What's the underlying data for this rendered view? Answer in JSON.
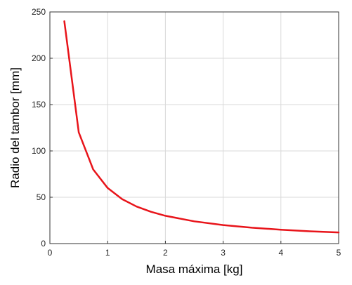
{
  "chart_data": {
    "type": "line",
    "title": "",
    "xlabel": "Masa máxima [kg]",
    "ylabel": "Radio del tambor [mm]",
    "xlim": [
      0,
      5
    ],
    "ylim": [
      0,
      250
    ],
    "xticks": [
      "0",
      "1",
      "2",
      "3",
      "4",
      "5"
    ],
    "yticks": [
      "0",
      "50",
      "100",
      "150",
      "200",
      "250"
    ],
    "grid": true,
    "series": [
      {
        "color": "#e8141a",
        "x": [
          0.25,
          0.5,
          0.75,
          1.0,
          1.25,
          1.5,
          1.75,
          2.0,
          2.5,
          3.0,
          3.5,
          4.0,
          4.5,
          5.0
        ],
        "y": [
          240,
          120,
          80,
          60,
          48,
          40,
          34.3,
          30,
          24,
          20,
          17.1,
          15,
          13.3,
          12
        ]
      }
    ]
  }
}
